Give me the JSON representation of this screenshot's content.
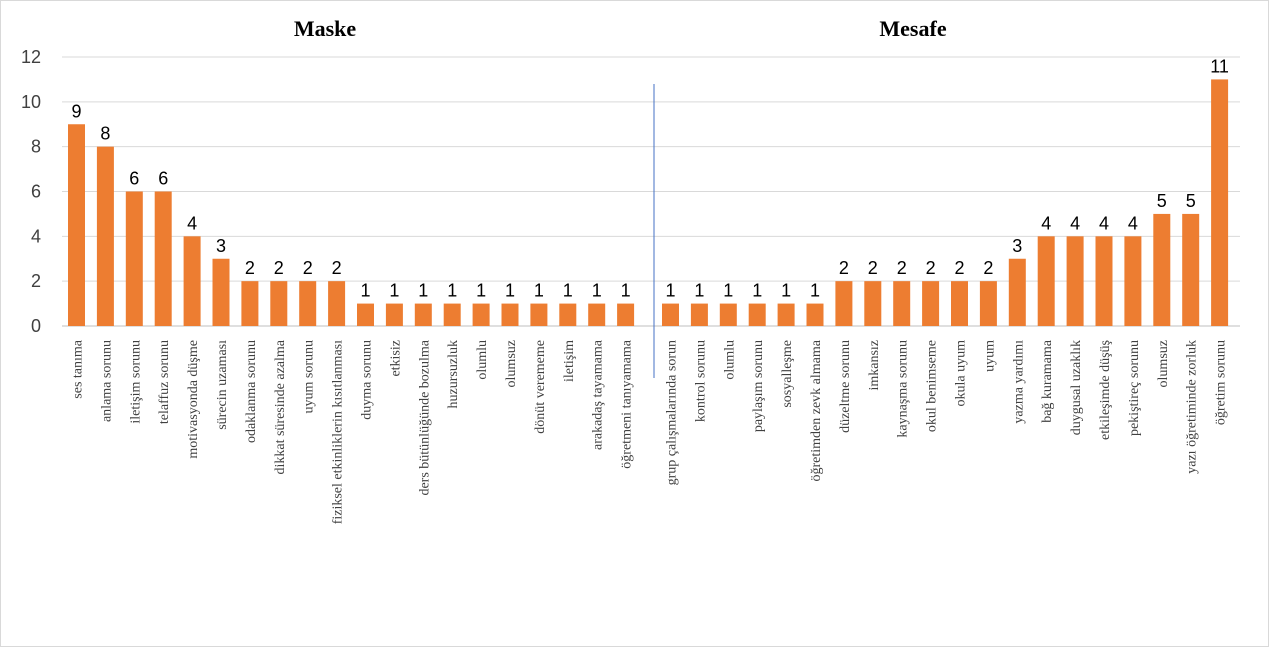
{
  "chart_data": {
    "type": "bar",
    "ylim": [
      0,
      12
    ],
    "yticks": [
      0,
      2,
      4,
      6,
      8,
      10,
      12
    ],
    "grid": true,
    "bar_color": "#ED7D31",
    "divider_color": "#4472C4",
    "groups": [
      {
        "title": "Maske",
        "categories": [
          "ses tanıma",
          "anlama sorunu",
          "iletişim sorunu",
          "telaffuz sorunu",
          "motivasyonda düşme",
          "sürecin uzaması",
          "odaklanma sorunu",
          "dikkat süresinde azalma",
          "uyum sorunu",
          "fiziksel etkinliklerin kısıtlanması",
          "duyma sorunu",
          "etkisiz",
          "ders bütünlüğünde bozulma",
          "huzursuzluk",
          "olumlu",
          "olumsuz",
          "dönüt verememe",
          "iletişim",
          "arakadaş tayamama",
          "öğretmeni tanıyamama"
        ],
        "values": [
          9,
          8,
          6,
          6,
          4,
          3,
          2,
          2,
          2,
          2,
          1,
          1,
          1,
          1,
          1,
          1,
          1,
          1,
          1,
          1
        ]
      },
      {
        "title": "Mesafe",
        "categories": [
          "grup çalışmalarında sorun",
          "kontrol sorunu",
          "olumlu",
          "paylaşım sorunu",
          "sosyalleşme",
          "öğretimden zevk almama",
          "düzeltme sorunu",
          "imkansız",
          "kaynaşma sorunu",
          "okul benimseme",
          "okula uyum",
          "uyum",
          "yazma yardımı",
          "bağ kuramama",
          "duygusal uzaklık",
          "etkileşimde düşüş",
          "pekiştireç sorunu",
          "olumsuz",
          "yazı öğretiminde zorluk",
          "öğretim sorunu"
        ],
        "values": [
          1,
          1,
          1,
          1,
          1,
          1,
          2,
          2,
          2,
          2,
          2,
          2,
          3,
          4,
          4,
          4,
          4,
          5,
          5,
          11
        ]
      }
    ]
  }
}
